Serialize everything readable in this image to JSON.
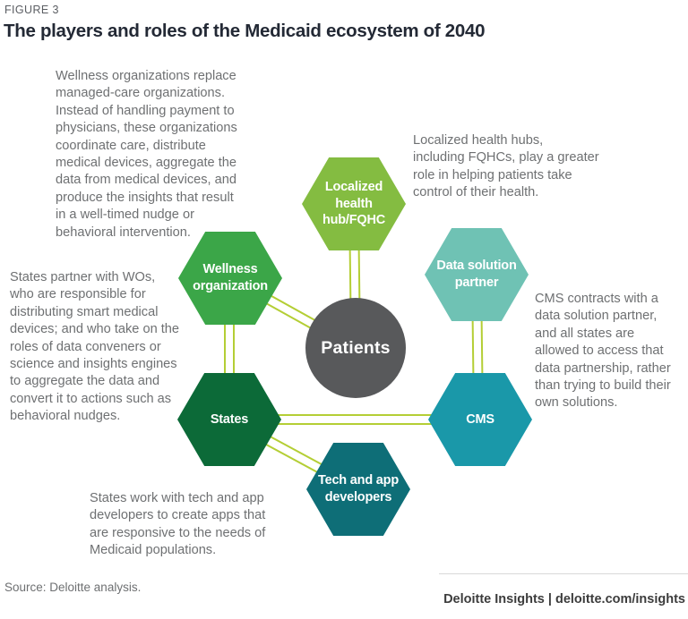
{
  "figure": {
    "label": "FIGURE 3",
    "title": "The players and roles of the Medicaid ecosystem of 2040"
  },
  "diagram": {
    "center": {
      "label": "Patients",
      "color": "#58595B"
    },
    "connector_color": "#B4CE35",
    "nodes": [
      {
        "id": "localized-health-hub",
        "label": "Localized\nhealth\nhub/FQHC",
        "color": "#84BC41"
      },
      {
        "id": "wellness-organization",
        "label": "Wellness\norganization",
        "color": "#3BA648"
      },
      {
        "id": "data-solution-partner",
        "label": "Data solution\npartner",
        "color": "#6FC2B4"
      },
      {
        "id": "states",
        "label": "States",
        "color": "#0C6A38"
      },
      {
        "id": "cms",
        "label": "CMS",
        "color": "#1A98A9"
      },
      {
        "id": "tech-and-app-developers",
        "label": "Tech and app\ndevelopers",
        "color": "#0E6E77"
      }
    ],
    "annotations": {
      "wellness": "Wellness organizations replace\nmanaged-care organizations.\nInstead of handling payment to\nphysicians, these organizations\ncoordinate care, distribute\nmedical devices, aggregate the\ndata from medical devices, and\nproduce the insights that result\nin a well-timed nudge or\nbehavioral intervention.",
      "health_hub": "Localized health hubs,\nincluding FQHCs, play a greater\nrole in helping patients take\ncontrol of their health.",
      "states": "States partner with WOs,\nwho are responsible for\ndistributing smart medical\ndevices; and who take on the\nroles of data conveners or\nscience and insights engines\nto aggregate the data and\nconvert it to actions such as\nbehavioral nudges.",
      "cms": "CMS contracts with a\ndata solution partner,\nand all states are\nallowed to access that\ndata partnership, rather\nthan trying to build their\nown solutions.",
      "tech": "States work with tech and app\ndevelopers to create apps that\nare responsive to the needs of\nMedicaid populations."
    }
  },
  "footer": {
    "source": "Source: Deloitte analysis.",
    "branding": "Deloitte Insights | deloitte.com/insights"
  }
}
